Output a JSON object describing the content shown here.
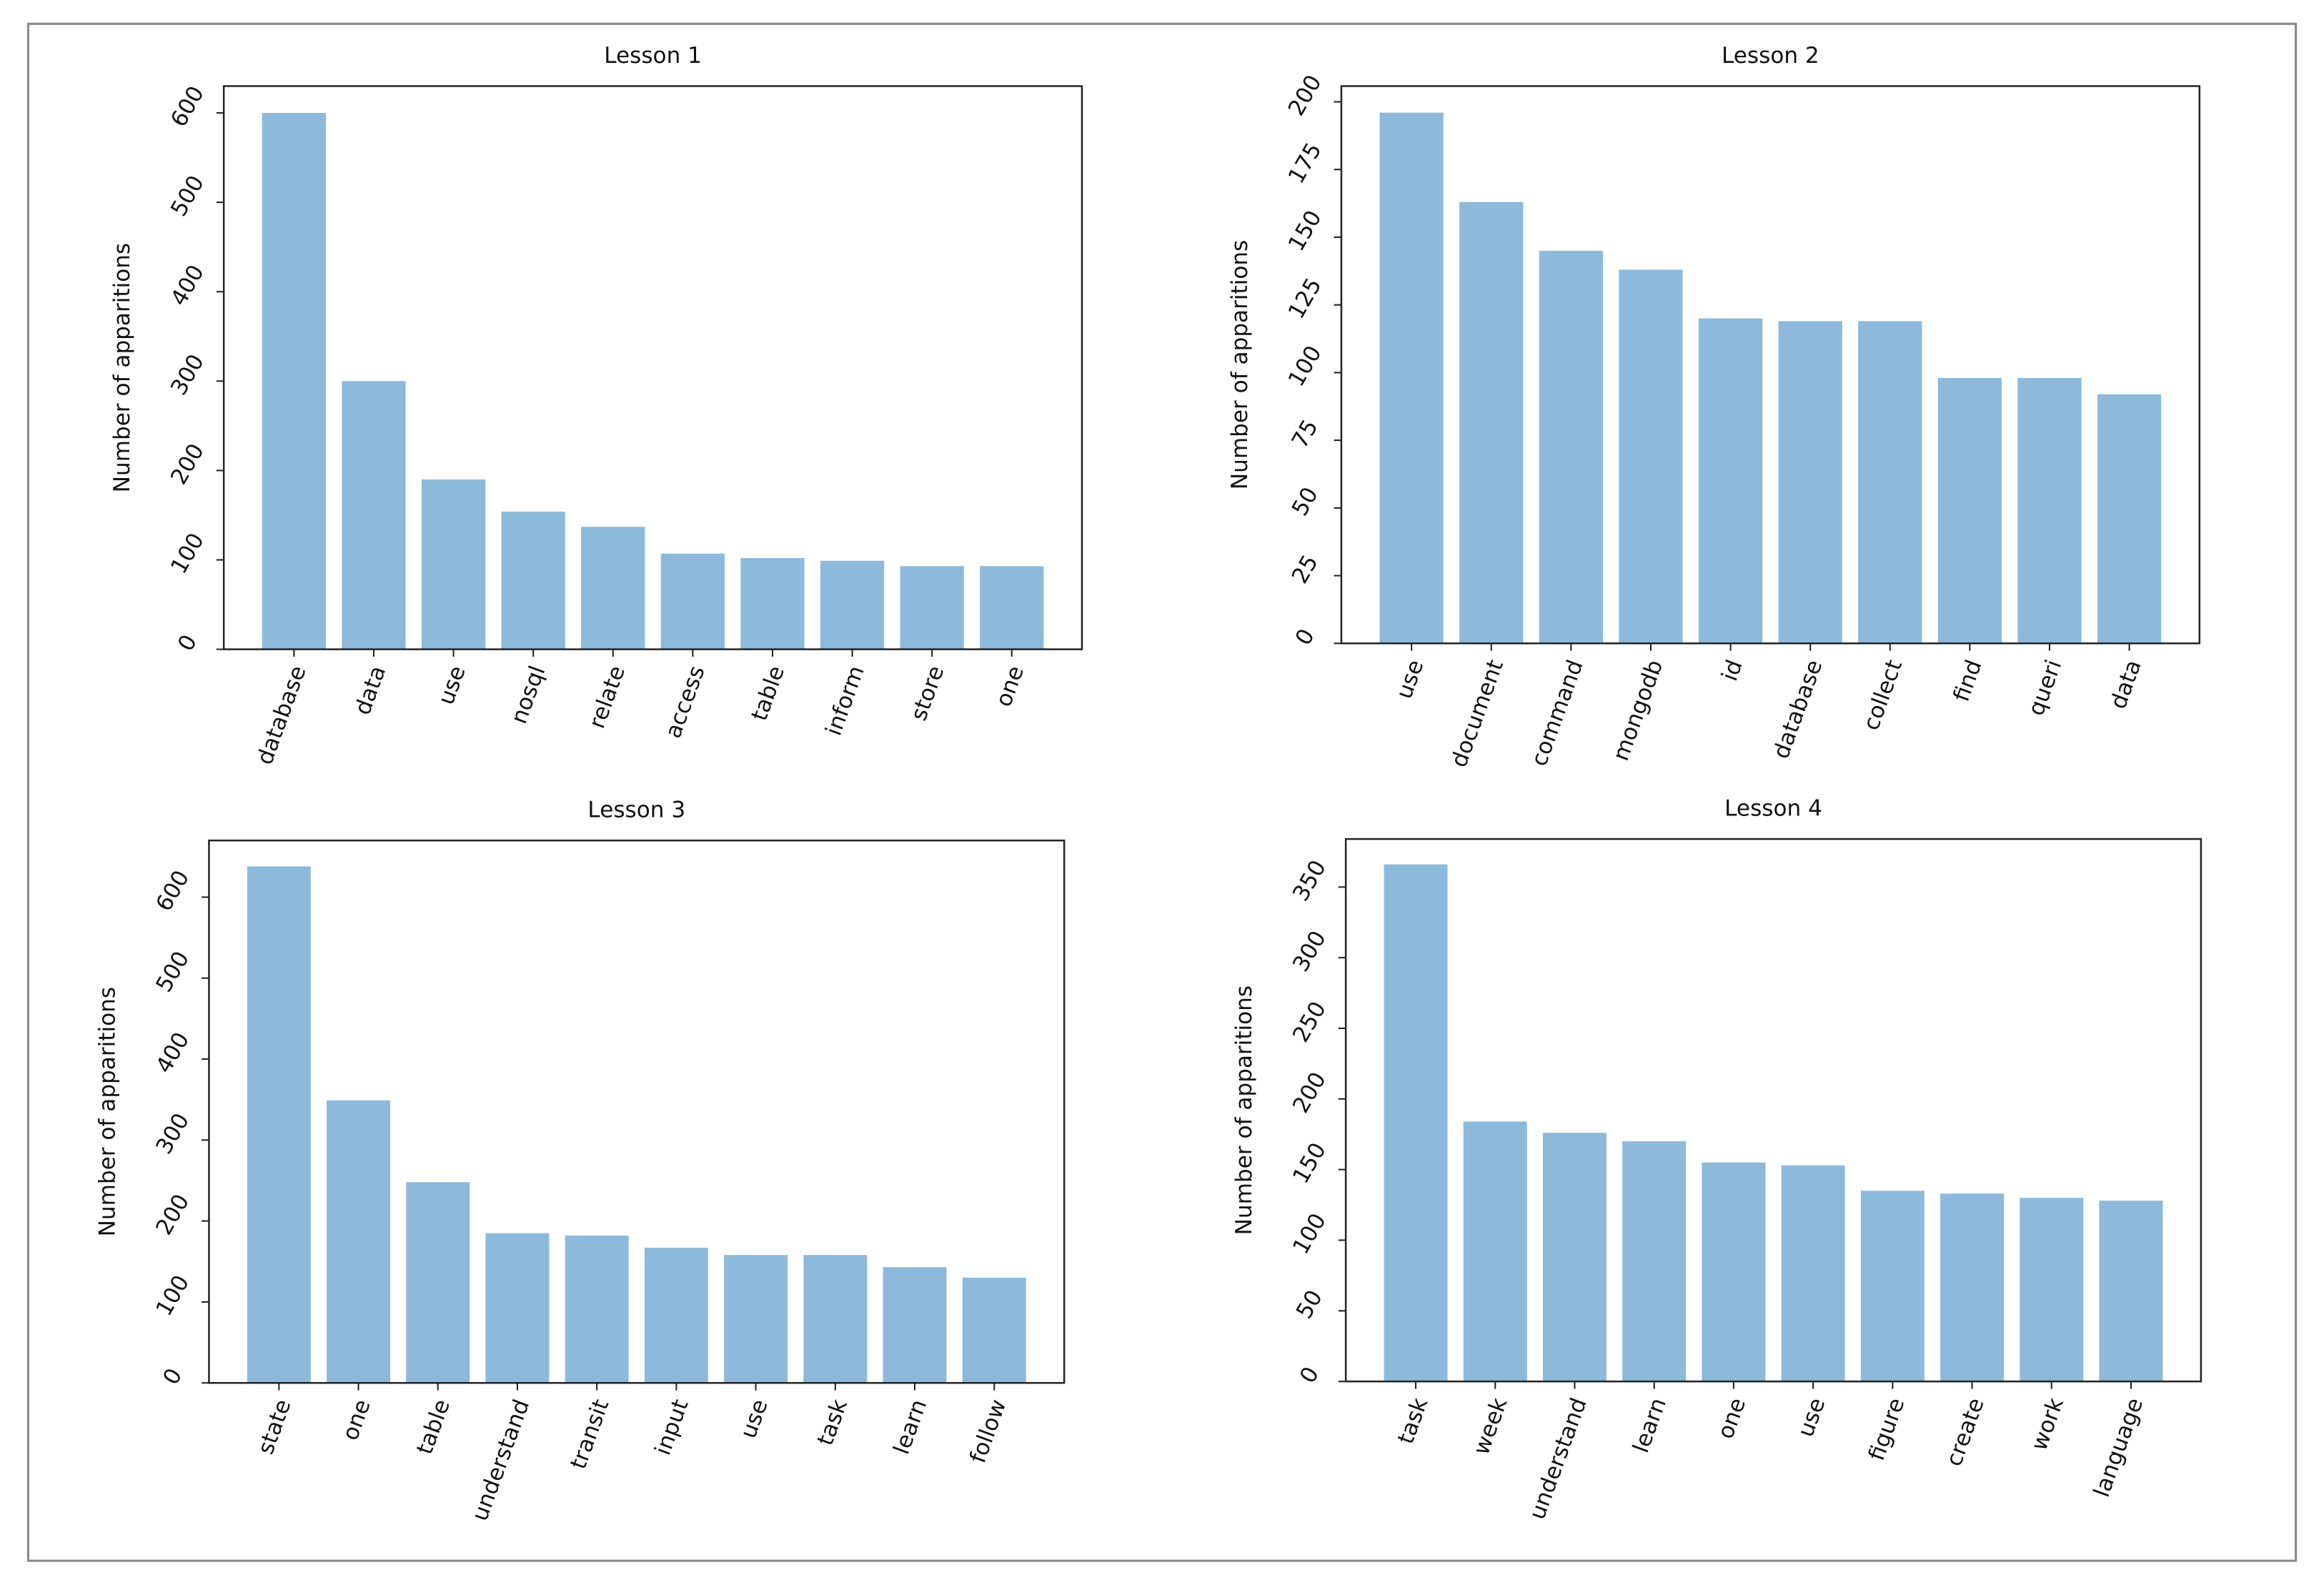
{
  "chart_data": [
    {
      "type": "bar",
      "title": "Lesson 1",
      "y_label": "Number of apparitions",
      "categories": [
        "database",
        "data",
        "use",
        "nosql",
        "relate",
        "access",
        "table",
        "inform",
        "store",
        "one"
      ],
      "values": [
        600,
        300,
        190,
        154,
        137,
        107,
        102,
        99,
        93,
        93
      ],
      "color": "#8db9db",
      "ylim": [
        0,
        630
      ],
      "yticks": [
        0,
        100,
        200,
        300,
        400,
        500,
        600
      ]
    },
    {
      "type": "bar",
      "title": "Lesson 2",
      "y_label": "Number of apparitions",
      "categories": [
        "use",
        "document",
        "command",
        "mongodb",
        "id",
        "database",
        "collect",
        "find",
        "queri",
        "data"
      ],
      "values": [
        196,
        163,
        145,
        138,
        120,
        119,
        119,
        98,
        98,
        92
      ],
      "color": "#8db9db",
      "ylim": [
        0,
        205.8
      ],
      "yticks": [
        0,
        25,
        50,
        75,
        100,
        125,
        150,
        175,
        200
      ]
    },
    {
      "type": "bar",
      "title": "Lesson 3",
      "y_label": "Number of apparitions",
      "categories": [
        "state",
        "one",
        "table",
        "understand",
        "transit",
        "input",
        "use",
        "task",
        "learn",
        "follow"
      ],
      "values": [
        638,
        349,
        248,
        185,
        182,
        167,
        158,
        158,
        143,
        130
      ],
      "color": "#8db9db",
      "ylim": [
        0,
        670
      ],
      "yticks": [
        0,
        100,
        200,
        300,
        400,
        500,
        600
      ]
    },
    {
      "type": "bar",
      "title": "Lesson 4",
      "y_label": "Number of apparitions",
      "categories": [
        "task",
        "week",
        "understand",
        "learn",
        "one",
        "use",
        "figure",
        "create",
        "work",
        "language"
      ],
      "values": [
        366,
        184,
        176,
        170,
        155,
        153,
        135,
        133,
        130,
        128
      ],
      "color": "#8db9db",
      "ylim": [
        0,
        384
      ],
      "yticks": [
        0,
        50,
        100,
        150,
        200,
        250,
        300,
        350
      ]
    }
  ]
}
